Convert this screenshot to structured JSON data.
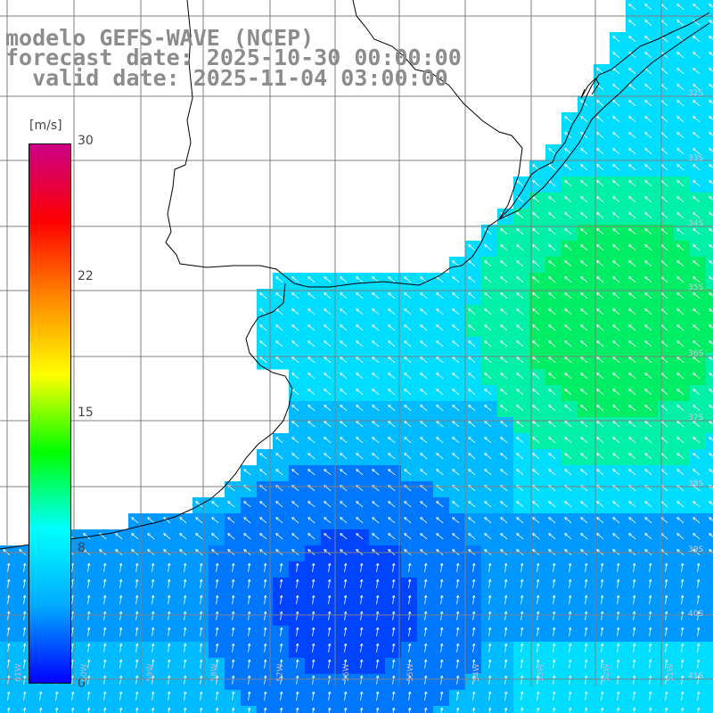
{
  "header": {
    "line1": "modelo GEFS-WAVE (NCEP)",
    "line2": "forecast date: 2025-10-30 00:00:00",
    "line3": "  valid date: 2025-11-04 03:00:00"
  },
  "colorbar": {
    "unit": "[m/s]",
    "min": 0,
    "max": 30,
    "ticks": [
      "30",
      "22",
      "15",
      "8",
      "0"
    ],
    "tick_values": [
      30,
      22,
      15,
      8,
      0
    ],
    "stops": [
      "#0000ff",
      "#00aaff",
      "#00ffff",
      "#00ff00",
      "#ffff00",
      "#ff8800",
      "#ff0000",
      "#cc0088"
    ]
  },
  "map": {
    "land_color": "#ffffff",
    "coastline_color": "#000000",
    "grid_color": "#808080",
    "lat_labels": [
      "32S",
      "33S",
      "34S",
      "35S",
      "36S",
      "37S",
      "38S",
      "39S",
      "40S",
      "41S"
    ],
    "lon_labels": [
      "61W",
      "60W",
      "59W",
      "58W",
      "57W",
      "56W",
      "55W",
      "54W",
      "53W",
      "52W",
      "51W"
    ]
  }
}
